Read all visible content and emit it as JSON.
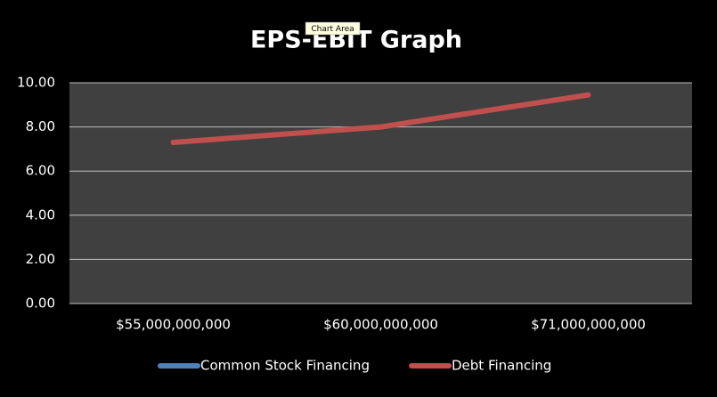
{
  "chart_data": {
    "type": "line",
    "title": "EPS-EBIT Graph",
    "tooltip": "Chart Area",
    "categories": [
      "$55,000,000,000",
      "$60,000,000,000",
      "$71,000,000,000"
    ],
    "series": [
      {
        "name": "Common Stock Financing",
        "color": "#4f81bd",
        "values": [
          null,
          null,
          null
        ]
      },
      {
        "name": "Debt Financing",
        "color": "#c0504d",
        "values": [
          7.3,
          8.0,
          9.45
        ]
      }
    ],
    "ylim": [
      0,
      10
    ],
    "yticks": [
      {
        "value": 0,
        "label": "0.00"
      },
      {
        "value": 2,
        "label": "2.00"
      },
      {
        "value": 4,
        "label": "4.00"
      },
      {
        "value": 6,
        "label": "6.00"
      },
      {
        "value": 8,
        "label": "8.00"
      },
      {
        "value": 10,
        "label": "10.00"
      }
    ],
    "grid": true,
    "legend": "bottom"
  }
}
